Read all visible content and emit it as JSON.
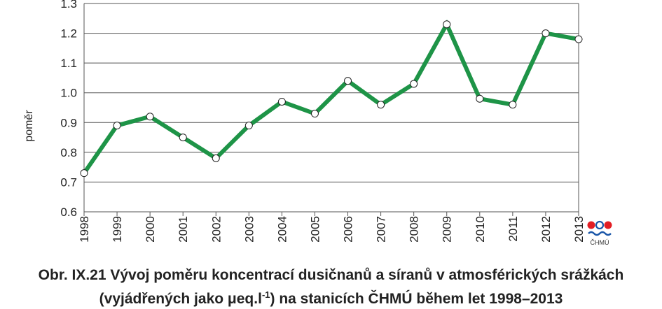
{
  "chart_data": {
    "type": "line",
    "x": [
      "1998",
      "1999",
      "2000",
      "2001",
      "2002",
      "2003",
      "2004",
      "2005",
      "2006",
      "2007",
      "2008",
      "2009",
      "2010",
      "2011",
      "2012",
      "2013"
    ],
    "values": [
      0.73,
      0.89,
      0.92,
      0.85,
      0.78,
      0.89,
      0.97,
      0.93,
      1.04,
      0.96,
      1.03,
      1.23,
      0.98,
      0.96,
      1.2,
      1.18
    ],
    "ylabel": "poměr",
    "ylim": [
      0.6,
      1.3
    ],
    "yticks": [
      "0.6",
      "0.7",
      "0.8",
      "0.9",
      "1.0",
      "1.1",
      "1.2",
      "1.3"
    ],
    "grid": true,
    "line_color": "#1e9447"
  },
  "logo": {
    "text": "ČHMÚ"
  },
  "caption": {
    "line1": "Obr. IX.21  Vývoj poměru koncentrací dusičnanů a síranů v atmosférických srážkách",
    "line2_pre": "(vyjádřených jako μeq.l",
    "line2_sup": "-1",
    "line2_post": ") na stanicích ČHMÚ během let 1998–2013"
  }
}
